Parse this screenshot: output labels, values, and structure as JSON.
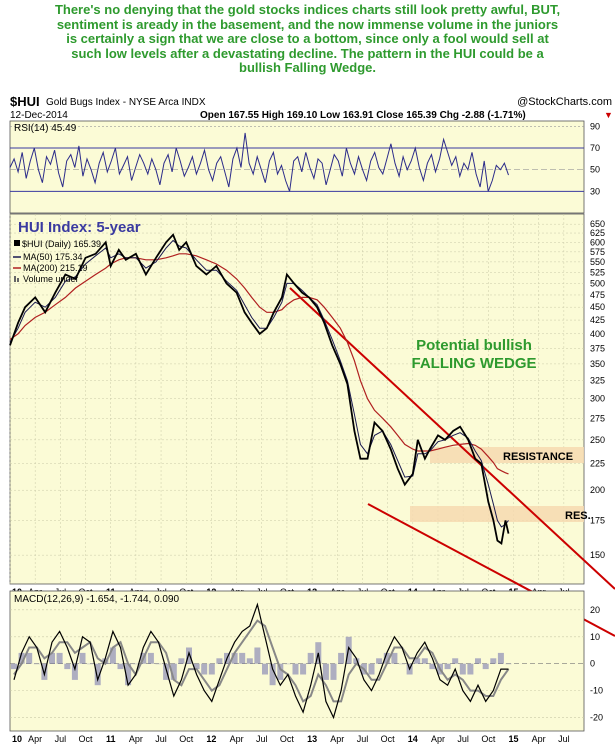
{
  "caption": {
    "lines": [
      "There's no denying that the gold stocks indices charts still look pretty awful, BUT,",
      "sentiment is aready in the basement, and the now immense volume in the juniors",
      "is certainly a sign that we are close to a bottom, since only a fool would sell at",
      "such low levels after a devastating decline. The pattern in the HUI could be a",
      "bullish Falling Wedge."
    ]
  },
  "header": {
    "symbol": "$HUI",
    "name": "Gold Bugs Index - NYSE Arca INDX",
    "source": "@StockCharts.com",
    "date": "12-Dec-2014",
    "ohlc": "Open 167.55  High 169.10  Low 163.91  Close 165.39  Chg -2.88 (-1.71%)",
    "ohlc_arrow": "▼"
  },
  "chart_data": [
    {
      "type": "line",
      "panel": "RSI",
      "label": "RSI(14) 45.49",
      "ylim": [
        10,
        95
      ],
      "yticks": [
        "90",
        "70",
        "50",
        "30"
      ],
      "ytick_values": [
        90,
        70,
        50,
        30
      ],
      "bands": [
        30,
        70
      ],
      "series": [
        {
          "name": "RSI(14)",
          "values": [
            52,
            60,
            48,
            66,
            42,
            58,
            70,
            50,
            38,
            62,
            55,
            68,
            47,
            34,
            58,
            64,
            52,
            72,
            44,
            60,
            50,
            38,
            56,
            66,
            48,
            58,
            70,
            46,
            54,
            62,
            40,
            52,
            64,
            56,
            46,
            60,
            50,
            36,
            56,
            64,
            48,
            70,
            58,
            44,
            52,
            62,
            46,
            56,
            68,
            50,
            40,
            56,
            62,
            48,
            34,
            60,
            70,
            52,
            84,
            56,
            46,
            62,
            50,
            38,
            58,
            66,
            46,
            54,
            40,
            30,
            58,
            62,
            48,
            66,
            52,
            42,
            60,
            56,
            36,
            50,
            64,
            58,
            44,
            70,
            56,
            46,
            62,
            50,
            40,
            58,
            66,
            52,
            46,
            60,
            74,
            56,
            44,
            62,
            50,
            58,
            70,
            52,
            40,
            56,
            64,
            48,
            60,
            78,
            66,
            54,
            62,
            44,
            56,
            50,
            66,
            46,
            34,
            58,
            30,
            40,
            54,
            50,
            56,
            45
          ]
        }
      ]
    },
    {
      "type": "line",
      "panel": "price",
      "title": "HUI Index: 5-year",
      "legend": [
        "$HUI (Daily) 165.39",
        "MA(50) 175.34",
        "MA(200) 215.19",
        "Volume undef"
      ],
      "log_scale": true,
      "ylim": [
        132,
        680
      ],
      "yticks": [
        "650",
        "625",
        "600",
        "575",
        "550",
        "525",
        "500",
        "475",
        "450",
        "425",
        "400",
        "375",
        "350",
        "325",
        "300",
        "275",
        "250",
        "225",
        "200",
        "175",
        "150"
      ],
      "ytick_values": [
        650,
        625,
        600,
        575,
        550,
        525,
        500,
        475,
        450,
        425,
        400,
        375,
        350,
        325,
        300,
        275,
        250,
        225,
        200,
        175,
        150
      ],
      "xlim": [
        2010.0,
        2015.7
      ],
      "x_labels": [
        "10",
        "Apr",
        "Jul",
        "Oct",
        "11",
        "Apr",
        "Jul",
        "Oct",
        "12",
        "Apr",
        "Jul",
        "Oct",
        "13",
        "Apr",
        "Jul",
        "Oct",
        "14",
        "Apr",
        "Jul",
        "Oct",
        "15",
        "Apr",
        "Jul"
      ],
      "x": [
        2010.0,
        2010.08,
        2010.15,
        2010.25,
        2010.35,
        2010.45,
        2010.55,
        2010.65,
        2010.75,
        2010.85,
        2010.95,
        2011.0,
        2011.08,
        2011.15,
        2011.25,
        2011.35,
        2011.45,
        2011.55,
        2011.62,
        2011.68,
        2011.75,
        2011.85,
        2011.95,
        2012.05,
        2012.15,
        2012.25,
        2012.33,
        2012.4,
        2012.48,
        2012.55,
        2012.62,
        2012.7,
        2012.75,
        2012.82,
        2012.9,
        2012.97,
        2013.05,
        2013.12,
        2013.2,
        2013.28,
        2013.35,
        2013.42,
        2013.48,
        2013.55,
        2013.62,
        2013.7,
        2013.78,
        2013.85,
        2013.92,
        2014.0,
        2014.05,
        2014.12,
        2014.17,
        2014.25,
        2014.32,
        2014.4,
        2014.47,
        2014.55,
        2014.62,
        2014.68,
        2014.75,
        2014.8,
        2014.84,
        2014.88,
        2014.92,
        2014.95
      ],
      "series": [
        {
          "name": "$HUI (Daily)",
          "values": [
            380,
            420,
            450,
            470,
            440,
            480,
            520,
            510,
            560,
            570,
            600,
            540,
            580,
            555,
            570,
            520,
            560,
            600,
            620,
            580,
            600,
            540,
            520,
            540,
            500,
            480,
            440,
            420,
            400,
            410,
            440,
            470,
            520,
            500,
            480,
            470,
            450,
            420,
            380,
            350,
            320,
            260,
            230,
            230,
            270,
            260,
            240,
            220,
            205,
            215,
            250,
            230,
            240,
            255,
            250,
            260,
            265,
            250,
            230,
            225,
            190,
            175,
            160,
            158,
            175,
            165
          ]
        },
        {
          "name": "MA(50)",
          "values": [
            385,
            410,
            440,
            460,
            450,
            470,
            505,
            515,
            545,
            565,
            585,
            560,
            570,
            560,
            560,
            535,
            550,
            585,
            605,
            590,
            585,
            555,
            530,
            530,
            505,
            485,
            455,
            430,
            410,
            410,
            430,
            460,
            500,
            500,
            485,
            470,
            455,
            425,
            390,
            355,
            325,
            280,
            245,
            235,
            255,
            260,
            245,
            228,
            212,
            213,
            235,
            235,
            238,
            248,
            250,
            255,
            258,
            252,
            238,
            228,
            205,
            188,
            175,
            170,
            172,
            175
          ]
        },
        {
          "name": "MA(200)",
          "values": [
            390,
            400,
            415,
            430,
            440,
            455,
            470,
            490,
            505,
            520,
            535,
            545,
            555,
            560,
            560,
            555,
            555,
            560,
            565,
            570,
            570,
            565,
            555,
            545,
            530,
            510,
            490,
            470,
            450,
            440,
            440,
            445,
            455,
            465,
            470,
            470,
            465,
            450,
            430,
            410,
            385,
            355,
            325,
            300,
            285,
            275,
            265,
            255,
            245,
            240,
            238,
            238,
            238,
            240,
            242,
            244,
            245,
            246,
            244,
            240,
            232,
            226,
            220,
            218,
            216,
            215
          ]
        }
      ],
      "annotations": {
        "wedge_title": "Potential bullish",
        "wedge_sub": "FALLING WEDGE",
        "resistance": "RESISTANCE",
        "res": "RES."
      }
    },
    {
      "type": "line",
      "panel": "MACD",
      "label": "MACD(12,26,9) -1.654, -1.744, 0.090",
      "ylim": [
        -25,
        27
      ],
      "yticks": [
        "20",
        "10",
        "0",
        "-10",
        "-20"
      ],
      "ytick_values": [
        20,
        10,
        0,
        -10,
        -20
      ],
      "series": [
        {
          "name": "MACD",
          "values": [
            -6,
            4,
            10,
            6,
            -4,
            8,
            12,
            6,
            -2,
            10,
            8,
            -6,
            2,
            12,
            6,
            -8,
            -4,
            6,
            12,
            8,
            -2,
            -12,
            -6,
            4,
            -4,
            -10,
            -14,
            -6,
            2,
            8,
            12,
            14,
            22,
            10,
            -2,
            -8,
            -4,
            -12,
            -18,
            -8,
            4,
            -14,
            -20,
            -10,
            6,
            2,
            -6,
            -10,
            -4,
            4,
            10,
            6,
            -2,
            4,
            8,
            2,
            -6,
            -8,
            -2,
            -10,
            -14,
            -8,
            -14,
            -10,
            -2,
            -2
          ]
        },
        {
          "name": "Signal",
          "values": [
            -4,
            0,
            6,
            6,
            2,
            4,
            8,
            8,
            4,
            6,
            8,
            2,
            0,
            6,
            8,
            0,
            -4,
            2,
            8,
            8,
            4,
            -6,
            -8,
            -2,
            -2,
            -6,
            -10,
            -8,
            -2,
            4,
            8,
            12,
            16,
            14,
            6,
            -2,
            -4,
            -8,
            -14,
            -12,
            -4,
            -8,
            -14,
            -14,
            -4,
            0,
            -2,
            -6,
            -6,
            0,
            6,
            6,
            2,
            2,
            6,
            4,
            -2,
            -6,
            -4,
            -6,
            -10,
            -10,
            -12,
            -12,
            -6,
            -2
          ]
        }
      ]
    }
  ]
}
